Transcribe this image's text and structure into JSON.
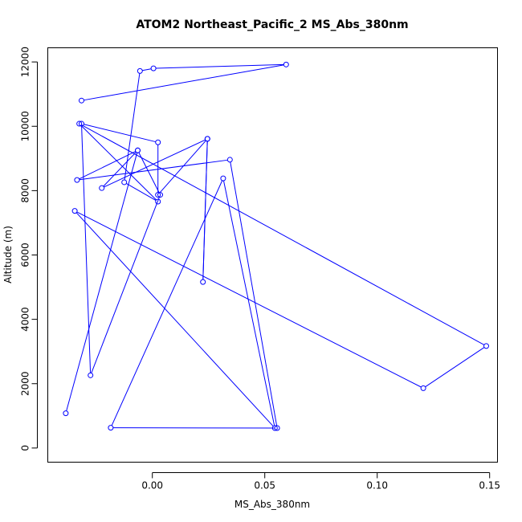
{
  "chart_data": {
    "type": "line",
    "title": "ATOM2 Northeast_Pacific_2 MS_Abs_380nm",
    "xlabel": "MS_Abs_380nm",
    "ylabel": "Altitude (m)",
    "xlim": [
      -0.0465,
      0.1535
    ],
    "ylim": [
      -440,
      12440
    ],
    "xticks": [
      0.0,
      0.05,
      0.1,
      0.15
    ],
    "xtick_labels": [
      "0.00",
      "0.05",
      "0.10",
      "0.15"
    ],
    "yticks": [
      0,
      2000,
      4000,
      6000,
      8000,
      10000,
      12000
    ],
    "ytick_labels": [
      "0",
      "2000",
      "4000",
      "6000",
      "8000",
      "10000",
      "12000"
    ],
    "grid": false,
    "colors": {
      "series": "#0000ff"
    },
    "series": [
      {
        "x": [
          -0.0385,
          -0.0065,
          0.0035,
          -0.0275,
          -0.0315,
          0.0025,
          0.0025,
          0.0245,
          0.0225,
          0.0245,
          -0.0225,
          -0.0065,
          -0.0335,
          0.0345,
          0.0555,
          -0.0185,
          0.0315,
          0.0545,
          -0.0345,
          0.1205,
          0.1485,
          -0.0325,
          0.0025,
          -0.0125,
          -0.0055,
          0.0005,
          0.0595,
          -0.0315
        ],
        "y": [
          1080,
          9250,
          7870,
          2260,
          10080,
          9500,
          7870,
          9610,
          5160,
          9610,
          8080,
          9250,
          8330,
          8960,
          620,
          630,
          8380,
          620,
          7370,
          1860,
          3170,
          10080,
          7660,
          8260,
          11720,
          11800,
          11920,
          10800
        ]
      }
    ]
  }
}
